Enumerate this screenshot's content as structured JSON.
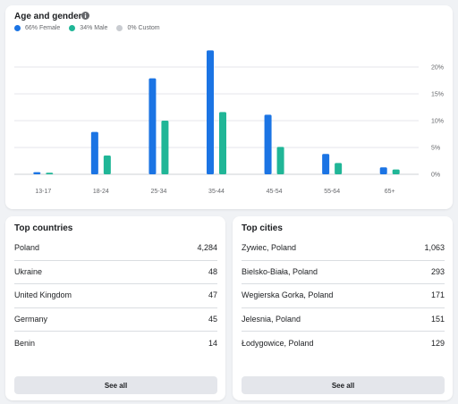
{
  "age_gender": {
    "title": "Age and gender",
    "legend": [
      {
        "label": "66% Female",
        "color": "#1b74e4"
      },
      {
        "label": "34% Male",
        "color": "#20b697"
      },
      {
        "label": "0% Custom",
        "color": "#c9ccd1"
      }
    ]
  },
  "chart_data": {
    "type": "bar",
    "categories": [
      "13-17",
      "18-24",
      "25-34",
      "35-44",
      "45-54",
      "55-64",
      "65+"
    ],
    "series": [
      {
        "name": "Female",
        "color": "#1b74e4",
        "values": [
          0.4,
          7.9,
          17.9,
          23.1,
          11.1,
          3.8,
          1.3
        ]
      },
      {
        "name": "Male",
        "color": "#20b697",
        "values": [
          0.3,
          3.5,
          10.0,
          11.6,
          5.1,
          2.1,
          0.9
        ]
      }
    ],
    "y_ticks": [
      "0%",
      "5%",
      "10%",
      "15%",
      "20%"
    ],
    "ylim": [
      0,
      25
    ],
    "grid": true
  },
  "top_countries": {
    "title": "Top countries",
    "items": [
      {
        "name": "Poland",
        "value": "4,284"
      },
      {
        "name": "Ukraine",
        "value": "48"
      },
      {
        "name": "United Kingdom",
        "value": "47"
      },
      {
        "name": "Germany",
        "value": "45"
      },
      {
        "name": "Benin",
        "value": "14"
      }
    ],
    "see_all": "See all"
  },
  "top_cities": {
    "title": "Top cities",
    "items": [
      {
        "name": "Zywiec, Poland",
        "value": "1,063"
      },
      {
        "name": "Bielsko-Biała, Poland",
        "value": "293"
      },
      {
        "name": "Wegierska Gorka, Poland",
        "value": "171"
      },
      {
        "name": "Jelesnia, Poland",
        "value": "151"
      },
      {
        "name": "Łodygowice, Poland",
        "value": "129"
      }
    ],
    "see_all": "See all"
  }
}
